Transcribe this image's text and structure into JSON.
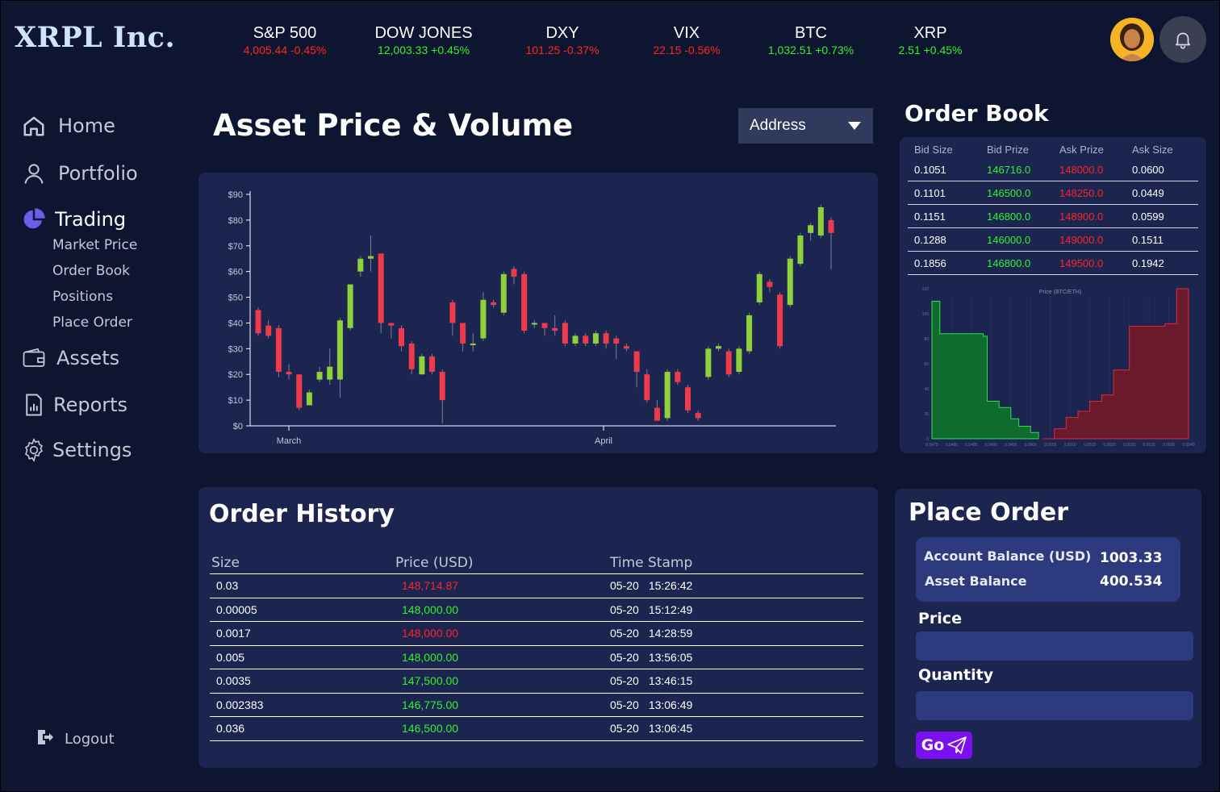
{
  "brand": "XRPL Inc.",
  "tickers": [
    {
      "name": "S&P 500",
      "value": "4,005.44 -0.45%",
      "trend": "down"
    },
    {
      "name": "DOW JONES",
      "value": "12,003.33 +0.45%",
      "trend": "up"
    },
    {
      "name": "DXY",
      "value": "101.25 -0.37%",
      "trend": "down"
    },
    {
      "name": "VIX",
      "value": "22.15 -0.56%",
      "trend": "down"
    },
    {
      "name": "BTC",
      "value": "1,032.51 +0.73%",
      "trend": "up"
    },
    {
      "name": "XRP",
      "value": "2.51 +0.45%",
      "trend": "up"
    }
  ],
  "icons": {
    "avatar": "user-avatar",
    "bell": "bell-icon"
  },
  "colors": {
    "background": "#0e1530",
    "panel": "#1c2550",
    "up": "#2df52d",
    "down": "#ff2525",
    "accent": "#7a10f0",
    "trading_icon": "#6c5ce7"
  },
  "sidebar": {
    "home": "Home",
    "portfolio": "Portfolio",
    "trading": "Trading",
    "trading_sub": [
      "Market Price",
      "Order Book",
      "Positions",
      "Place Order"
    ],
    "assets": "Assets",
    "reports": "Reports",
    "settings": "Settings",
    "logout": "Logout"
  },
  "main": {
    "title": "Asset Price & Volume",
    "address_select": "Address"
  },
  "chart_data": [
    {
      "type": "candlestick",
      "title": "",
      "y_ticks": [
        "$0",
        "$10",
        "$20",
        "$30",
        "$40",
        "$50",
        "$60",
        "$70",
        "$80",
        "$90"
      ],
      "x_ticks": [
        "March",
        "April"
      ],
      "ylim": [
        0,
        90
      ],
      "candles": [
        {
          "o": 45,
          "c": 36,
          "h": 46,
          "l": 35
        },
        {
          "o": 39,
          "c": 35,
          "h": 41,
          "l": 34
        },
        {
          "o": 38,
          "c": 21,
          "h": 39,
          "l": 19
        },
        {
          "o": 21,
          "c": 20,
          "h": 24,
          "l": 18
        },
        {
          "o": 20,
          "c": 7,
          "h": 20,
          "l": 6
        },
        {
          "o": 8,
          "c": 13,
          "h": 14,
          "l": 8
        },
        {
          "o": 18,
          "c": 21,
          "h": 23,
          "l": 17
        },
        {
          "o": 18,
          "c": 23,
          "h": 30,
          "l": 16
        },
        {
          "o": 18,
          "c": 41,
          "h": 42,
          "l": 11
        },
        {
          "o": 38,
          "c": 55,
          "h": 55,
          "l": 37
        },
        {
          "o": 60,
          "c": 65,
          "h": 66,
          "l": 58
        },
        {
          "o": 65,
          "c": 66,
          "h": 74,
          "l": 60
        },
        {
          "o": 67,
          "c": 40,
          "h": 67,
          "l": 36
        },
        {
          "o": 40,
          "c": 39,
          "h": 40,
          "l": 34
        },
        {
          "o": 38,
          "c": 31,
          "h": 39,
          "l": 29
        },
        {
          "o": 32,
          "c": 22,
          "h": 33,
          "l": 20
        },
        {
          "o": 20,
          "c": 27,
          "h": 28,
          "l": 20
        },
        {
          "o": 27,
          "c": 21,
          "h": 28,
          "l": 20
        },
        {
          "o": 21,
          "c": 10,
          "h": 22,
          "l": 1
        },
        {
          "o": 48,
          "c": 40,
          "h": 49,
          "l": 35
        },
        {
          "o": 40,
          "c": 32,
          "h": 40,
          "l": 29
        },
        {
          "o": 32,
          "c": 32,
          "h": 36,
          "l": 29
        },
        {
          "o": 34,
          "c": 49,
          "h": 52,
          "l": 33
        },
        {
          "o": 48,
          "c": 47,
          "h": 49,
          "l": 46
        },
        {
          "o": 44,
          "c": 59,
          "h": 60,
          "l": 43
        },
        {
          "o": 61,
          "c": 58,
          "h": 62,
          "l": 55
        },
        {
          "o": 59,
          "c": 37,
          "h": 60,
          "l": 36
        },
        {
          "o": 40,
          "c": 40,
          "h": 41,
          "l": 38
        },
        {
          "o": 40,
          "c": 38,
          "h": 40,
          "l": 35
        },
        {
          "o": 38,
          "c": 37,
          "h": 43,
          "l": 35
        },
        {
          "o": 40,
          "c": 32,
          "h": 41,
          "l": 31
        },
        {
          "o": 32,
          "c": 35,
          "h": 36,
          "l": 31
        },
        {
          "o": 35,
          "c": 32,
          "h": 36,
          "l": 31
        },
        {
          "o": 32,
          "c": 36,
          "h": 37,
          "l": 31
        },
        {
          "o": 36,
          "c": 32,
          "h": 37,
          "l": 30
        },
        {
          "o": 34,
          "c": 32,
          "h": 35,
          "l": 26
        },
        {
          "o": 31,
          "c": 30,
          "h": 32,
          "l": 29
        },
        {
          "o": 29,
          "c": 21,
          "h": 29,
          "l": 15
        },
        {
          "o": 20,
          "c": 10,
          "h": 22,
          "l": 9
        },
        {
          "o": 7,
          "c": 2,
          "h": 10,
          "l": 2
        },
        {
          "o": 3,
          "c": 21,
          "h": 22,
          "l": 2
        },
        {
          "o": 21,
          "c": 17,
          "h": 22,
          "l": 16
        },
        {
          "o": 15,
          "c": 6,
          "h": 16,
          "l": 5
        },
        {
          "o": 5,
          "c": 3,
          "h": 6,
          "l": 2
        },
        {
          "o": 19,
          "c": 30,
          "h": 31,
          "l": 18
        },
        {
          "o": 30,
          "c": 31,
          "h": 32,
          "l": 29
        },
        {
          "o": 29,
          "c": 20,
          "h": 30,
          "l": 19
        },
        {
          "o": 21,
          "c": 30,
          "h": 31,
          "l": 20
        },
        {
          "o": 29,
          "c": 43,
          "h": 44,
          "l": 28
        },
        {
          "o": 48,
          "c": 59,
          "h": 60,
          "l": 47
        },
        {
          "o": 56,
          "c": 54,
          "h": 57,
          "l": 52
        },
        {
          "o": 51,
          "c": 31,
          "h": 52,
          "l": 30
        },
        {
          "o": 47,
          "c": 65,
          "h": 66,
          "l": 46
        },
        {
          "o": 63,
          "c": 74,
          "h": 75,
          "l": 62
        },
        {
          "o": 75,
          "c": 78,
          "h": 79,
          "l": 72
        },
        {
          "o": 74,
          "c": 85,
          "h": 86,
          "l": 73
        },
        {
          "o": 80,
          "c": 75,
          "h": 81,
          "l": 61
        }
      ]
    },
    {
      "type": "area",
      "title": "Price (BTC/ETH)",
      "y_ticks": [
        "120",
        "100",
        "80",
        "60",
        "40",
        "20",
        "0"
      ],
      "x_ticks": [
        "0.0475",
        "0.0480",
        "0.0485",
        "0.0490",
        "0.0495",
        "0.0500",
        "0.0505",
        "0.0510",
        "0.0515",
        "0.0520",
        "0.0525",
        "0.0530",
        "0.0535",
        "0.0540"
      ],
      "ylim": [
        0,
        120
      ],
      "series": [
        {
          "name": "",
          "side": "bid",
          "x": [
            0.0475,
            0.0476,
            0.0477,
            0.0488,
            0.0489,
            0.0492,
            0.0495,
            0.0497,
            0.05,
            0.0502
          ],
          "y": [
            110,
            110,
            84,
            82,
            30,
            25,
            16,
            10,
            5,
            0
          ]
        },
        {
          "name": "",
          "side": "ask",
          "x": [
            0.0503,
            0.0506,
            0.0509,
            0.0512,
            0.0515,
            0.0518,
            0.0521,
            0.0525,
            0.053,
            0.0534,
            0.0537,
            0.054
          ],
          "y": [
            0,
            8,
            17,
            22,
            30,
            35,
            55,
            90,
            90,
            92,
            120,
            120
          ]
        }
      ]
    }
  ],
  "order_book": {
    "title": "Order Book",
    "headers": [
      "Bid Size",
      "Bid Prize",
      "Ask Prize",
      "Ask Size"
    ],
    "rows": [
      [
        "0.1051",
        "146716.0",
        "148000.0",
        "0.0600"
      ],
      [
        "0.1101",
        "146500.0",
        "148250.0",
        "0.0449"
      ],
      [
        "0.1151",
        "146800.0",
        "148900.0",
        "0.0599"
      ],
      [
        "0.1288",
        "146000.0",
        "149000.0",
        "0.1511"
      ],
      [
        "0.1856",
        "146800.0",
        "149500.0",
        "0.1942"
      ]
    ]
  },
  "order_history": {
    "title": "Order History",
    "headers": [
      "Size",
      "Price (USD)",
      "Time Stamp"
    ],
    "rows": [
      {
        "size": "0.03",
        "price": "148,714.87",
        "side": "down",
        "date": "05-20",
        "time": "15:26:42"
      },
      {
        "size": "0.00005",
        "price": "148,000.00",
        "side": "up",
        "date": "05-20",
        "time": "15:12:49"
      },
      {
        "size": "0.0017",
        "price": "148,000.00",
        "side": "down",
        "date": "05-20",
        "time": "14:28:59"
      },
      {
        "size": "0.005",
        "price": "148,000.00",
        "side": "up",
        "date": "05-20",
        "time": "13:56:05"
      },
      {
        "size": "0.0035",
        "price": "147,500.00",
        "side": "up",
        "date": "05-20",
        "time": "13:46:15"
      },
      {
        "size": "0.002383",
        "price": "146,775.00",
        "side": "up",
        "date": "05-20",
        "time": "13:06:49"
      },
      {
        "size": "0.036",
        "price": "146,500.00",
        "side": "up",
        "date": "05-20",
        "time": "13:06:45"
      }
    ]
  },
  "place_order": {
    "title": "Place Order",
    "account_balance_label": "Account Balance (USD)",
    "account_balance_value": "1003.33",
    "asset_balance_label": "Asset Balance",
    "asset_balance_value": "400.534",
    "price_label": "Price",
    "price_value": "",
    "quantity_label": "Quantity",
    "quantity_value": "",
    "go_label": "Go"
  }
}
